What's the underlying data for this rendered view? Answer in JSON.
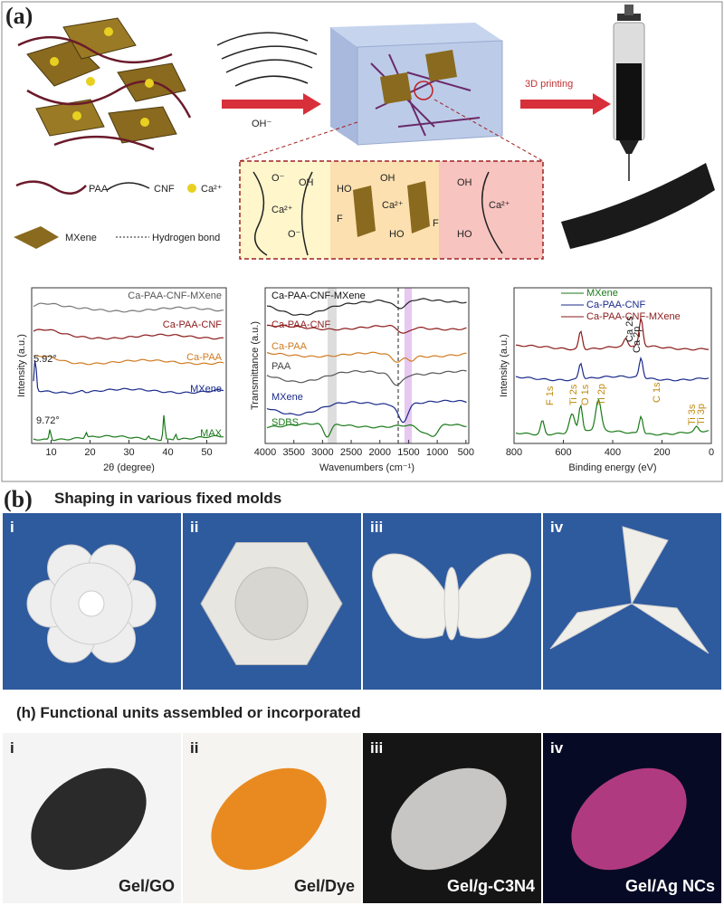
{
  "panel_a": {
    "label": "(a)",
    "reaction": "OH⁻",
    "printing": "3D printing",
    "legend": [
      "PAA",
      "CNF",
      "Ca²⁺",
      "MXene",
      "Hydrogen bond"
    ],
    "bond_labels": [
      "O⁻",
      "Ca²⁺",
      "O⁻",
      "OH",
      "HO",
      "F",
      "Ca²⁺",
      "OH",
      "HO",
      "F",
      "OH",
      "Ca²⁺",
      "HO"
    ],
    "xrd": {
      "ylabel": "Intensity (a.u.)",
      "xlabel": "2θ (degree)",
      "xlim": [
        5,
        55
      ],
      "xticks": [
        10,
        20,
        30,
        40,
        50
      ],
      "series": [
        "Ca-PAA-CNF-MXene",
        "Ca-PAA-CNF",
        "Ca-PAA",
        "MXene",
        "MAX"
      ],
      "annotations": [
        "5.92°",
        "9.72°"
      ]
    },
    "ftir": {
      "ylabel": "Transmittance (a.u.)",
      "xlabel": "Wavenumbers (cm⁻¹)",
      "xlim": [
        4000,
        450
      ],
      "xticks": [
        4000,
        3500,
        3000,
        2500,
        2000,
        1500,
        1000,
        500
      ],
      "series": [
        "Ca-PAA-CNF-MXene",
        "Ca-PAA-CNF",
        "Ca-PAA",
        "PAA",
        "MXene",
        "SDBS"
      ]
    },
    "xps": {
      "ylabel": "Intensity (a.u.)",
      "xlabel": "Binding energy (eV)",
      "xlim": [
        800,
        0
      ],
      "xticks": [
        800,
        600,
        400,
        200,
        0
      ],
      "series": [
        "MXene",
        "Ca-PAA-CNF",
        "Ca-PAA-CNF-MXene"
      ],
      "peaks": [
        "Ca 2s",
        "Ca 2p",
        "F 1s",
        "Ti 2s",
        "O 1s",
        "Ti 2p",
        "C 1s",
        "Ti 3s",
        "Ti 3p"
      ]
    }
  },
  "panel_b": {
    "label": "(b)",
    "title": "Shaping in various fixed molds",
    "items": [
      "i",
      "ii",
      "iii",
      "iv"
    ]
  },
  "panel_h": {
    "title": "(h) Functional units assembled or incorporated",
    "items": [
      {
        "numeral": "i",
        "caption": "Gel/GO"
      },
      {
        "numeral": "ii",
        "caption": "Gel/Dye"
      },
      {
        "numeral": "iii",
        "caption": "Gel/g-C3N4"
      },
      {
        "numeral": "iv",
        "caption": "Gel/Ag NCs"
      }
    ]
  }
}
